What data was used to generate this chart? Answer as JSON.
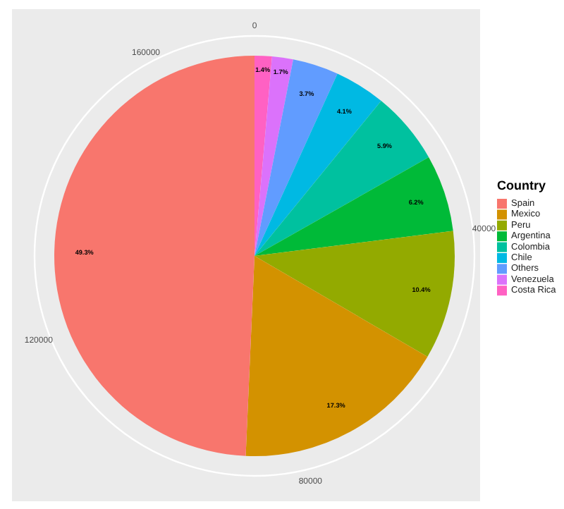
{
  "chart_data": {
    "type": "pie",
    "legend_title": "Country",
    "categories": [
      "Spain",
      "Mexico",
      "Peru",
      "Argentina",
      "Colombia",
      "Chile",
      "Others",
      "Venezuela",
      "Costa Rica"
    ],
    "values": [
      49.3,
      17.3,
      10.4,
      6.2,
      5.9,
      4.1,
      3.7,
      1.7,
      1.4
    ],
    "value_labels": [
      "49.3%",
      "17.3%",
      "10.4%",
      "6.2%",
      "5.9%",
      "4.1%",
      "3.7%",
      "1.7%",
      "1.4%"
    ],
    "colors": [
      "#f8766d",
      "#d39200",
      "#93aa00",
      "#00ba38",
      "#00c19f",
      "#00b9e3",
      "#619cff",
      "#db72fb",
      "#ff61c3"
    ],
    "annotations": [
      "0",
      "40000",
      "80000",
      "120000",
      "160000"
    ],
    "legend": "right"
  }
}
